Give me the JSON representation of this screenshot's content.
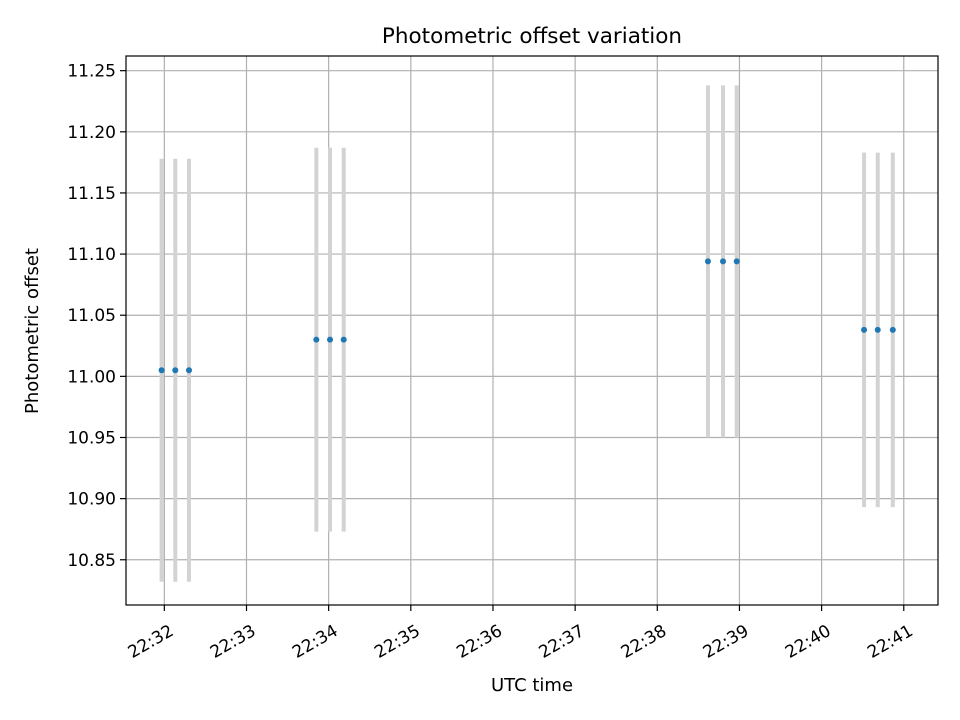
{
  "chart_data": {
    "type": "scatter",
    "title": "Photometric offset variation",
    "xlabel": "UTC time",
    "ylabel": "Photometric offset",
    "x_tick_labels": [
      "22:32",
      "22:33",
      "22:34",
      "22:35",
      "22:36",
      "22:37",
      "22:38",
      "22:39",
      "22:40",
      "22:41"
    ],
    "y_tick_labels": [
      "10.85",
      "10.90",
      "10.95",
      "11.00",
      "11.05",
      "11.10",
      "11.15",
      "11.20",
      "11.25"
    ],
    "ylim": [
      10.813,
      11.262
    ],
    "xlim": [
      "22:31:32",
      "22:41:25"
    ],
    "grid": true,
    "marker_color": "#1f77b4",
    "errorbar_color": "#d3d3d3",
    "points": [
      {
        "x": "22:31:58",
        "y": 11.005,
        "yerr": 0.173
      },
      {
        "x": "22:32:08",
        "y": 11.005,
        "yerr": 0.173
      },
      {
        "x": "22:32:18",
        "y": 11.005,
        "yerr": 0.173
      },
      {
        "x": "22:33:51",
        "y": 11.03,
        "yerr": 0.157
      },
      {
        "x": "22:34:01",
        "y": 11.03,
        "yerr": 0.157
      },
      {
        "x": "22:34:11",
        "y": 11.03,
        "yerr": 0.157
      },
      {
        "x": "22:38:37",
        "y": 11.094,
        "yerr": 0.144
      },
      {
        "x": "22:38:48",
        "y": 11.094,
        "yerr": 0.144
      },
      {
        "x": "22:38:58",
        "y": 11.094,
        "yerr": 0.144
      },
      {
        "x": "22:40:31",
        "y": 11.038,
        "yerr": 0.145
      },
      {
        "x": "22:40:41",
        "y": 11.038,
        "yerr": 0.145
      },
      {
        "x": "22:40:52",
        "y": 11.038,
        "yerr": 0.145
      }
    ]
  }
}
